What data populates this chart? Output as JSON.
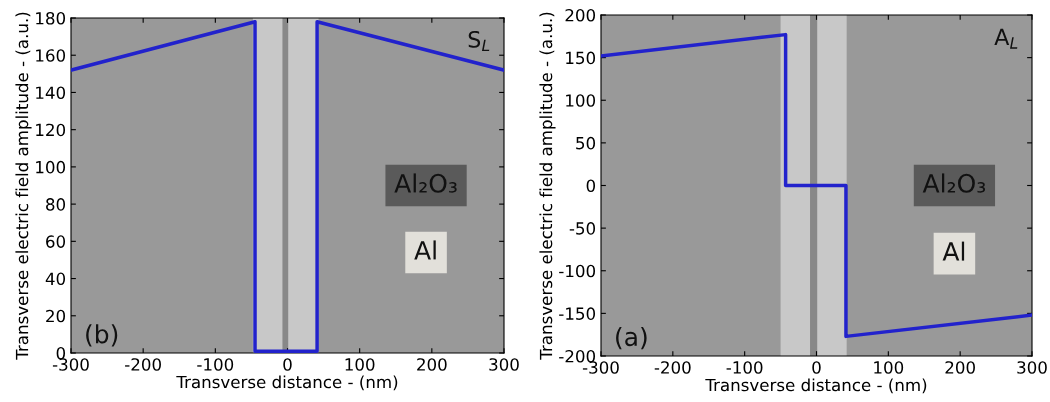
{
  "chart_data": [
    {
      "type": "line",
      "xlabel": "Transverse distance - (nm)",
      "ylabel": "Transverse electric field amplitude - (a.u.)",
      "series": [
        {
          "color": "#2222cc",
          "x": [
            -300,
            -45,
            -45,
            41,
            41,
            300
          ],
          "values": [
            152,
            178,
            1,
            1,
            178,
            152
          ]
        }
      ],
      "xlim": [
        -300,
        300
      ],
      "xticks": [
        -300,
        -200,
        -100,
        0,
        100,
        200,
        300
      ],
      "ylim": [
        0,
        180
      ],
      "yticks": [
        0,
        20,
        40,
        60,
        80,
        100,
        120,
        140,
        160,
        180
      ],
      "bands": [
        {
          "axis": "x",
          "from": -48,
          "to": 43,
          "color": "#c8c8c8"
        },
        {
          "axis": "x",
          "from": -7,
          "to": 1,
          "color": "#888888"
        }
      ],
      "annotations": [
        "S$_{L}$",
        "(b)",
        "Al₂O₃",
        "Al"
      ],
      "grid": false,
      "legend": false
    },
    {
      "type": "line",
      "xlabel": "Transverse distance - (nm)",
      "ylabel": "Transverse electric field amplitude - (a.u.)",
      "series": [
        {
          "color": "#2222cc",
          "x": [
            -300,
            -43,
            -43,
            41,
            41,
            300
          ],
          "values": [
            152,
            177,
            0,
            0,
            -177,
            -152
          ]
        }
      ],
      "xlim": [
        -300,
        300
      ],
      "xticks": [
        -300,
        -200,
        -100,
        0,
        100,
        200,
        300
      ],
      "ylim": [
        -200,
        200
      ],
      "yticks": [
        -200,
        -150,
        -100,
        -50,
        0,
        50,
        100,
        150,
        200
      ],
      "bands": [
        {
          "axis": "x",
          "from": -50,
          "to": 42,
          "color": "#c8c8c8"
        },
        {
          "axis": "x",
          "from": -9,
          "to": 1,
          "color": "#888888"
        }
      ],
      "annotations": [
        "A$_{L}$",
        "(a)",
        "Al₂O₃",
        "Al"
      ],
      "grid": false,
      "legend": false
    }
  ]
}
